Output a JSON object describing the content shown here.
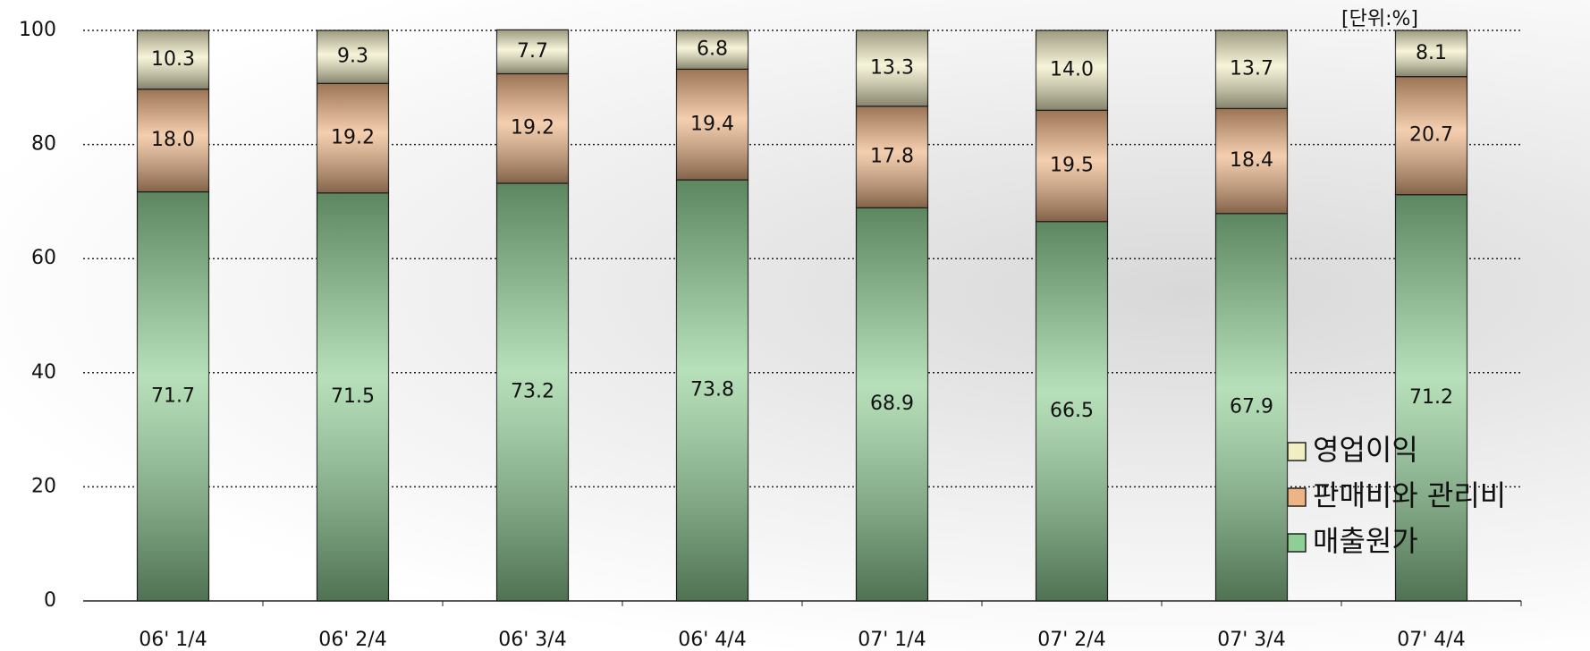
{
  "chart_data": {
    "type": "stacked_bar",
    "unit": "[단위:%]",
    "categories": [
      "06' 1/4",
      "06' 2/4",
      "06' 3/4",
      "06' 4/4",
      "07' 1/4",
      "07' 2/4",
      "07' 3/4",
      "07' 4/4"
    ],
    "series": [
      {
        "name": "매출원가",
        "color": "#8fcf95",
        "values": [
          71.7,
          71.5,
          73.2,
          73.8,
          68.9,
          66.5,
          67.9,
          71.2
        ]
      },
      {
        "name": "판매비와 관리비",
        "color": "#eeb484",
        "values": [
          18,
          19.2,
          19.2,
          19.4,
          17.8,
          19.5,
          18.4,
          20.7
        ],
        "value_labels": [
          "18.0",
          "19.2",
          "19.2",
          "19.4",
          "17.8",
          "19.5",
          "18.4",
          "20.7"
        ]
      },
      {
        "name": "영업이익",
        "color": "#f2eec4",
        "values": [
          10.3,
          9.3,
          7.7,
          6.8,
          13.3,
          14,
          13.7,
          8.1
        ],
        "value_labels": [
          "10.3",
          "9.3",
          "7.7",
          "6.8",
          "13.3",
          "14.0",
          "13.7",
          "8.1"
        ]
      }
    ],
    "ylim": [
      0,
      100
    ],
    "yticks": [
      0,
      20,
      40,
      60,
      80,
      100
    ],
    "grid": true,
    "legend": "lower right"
  }
}
